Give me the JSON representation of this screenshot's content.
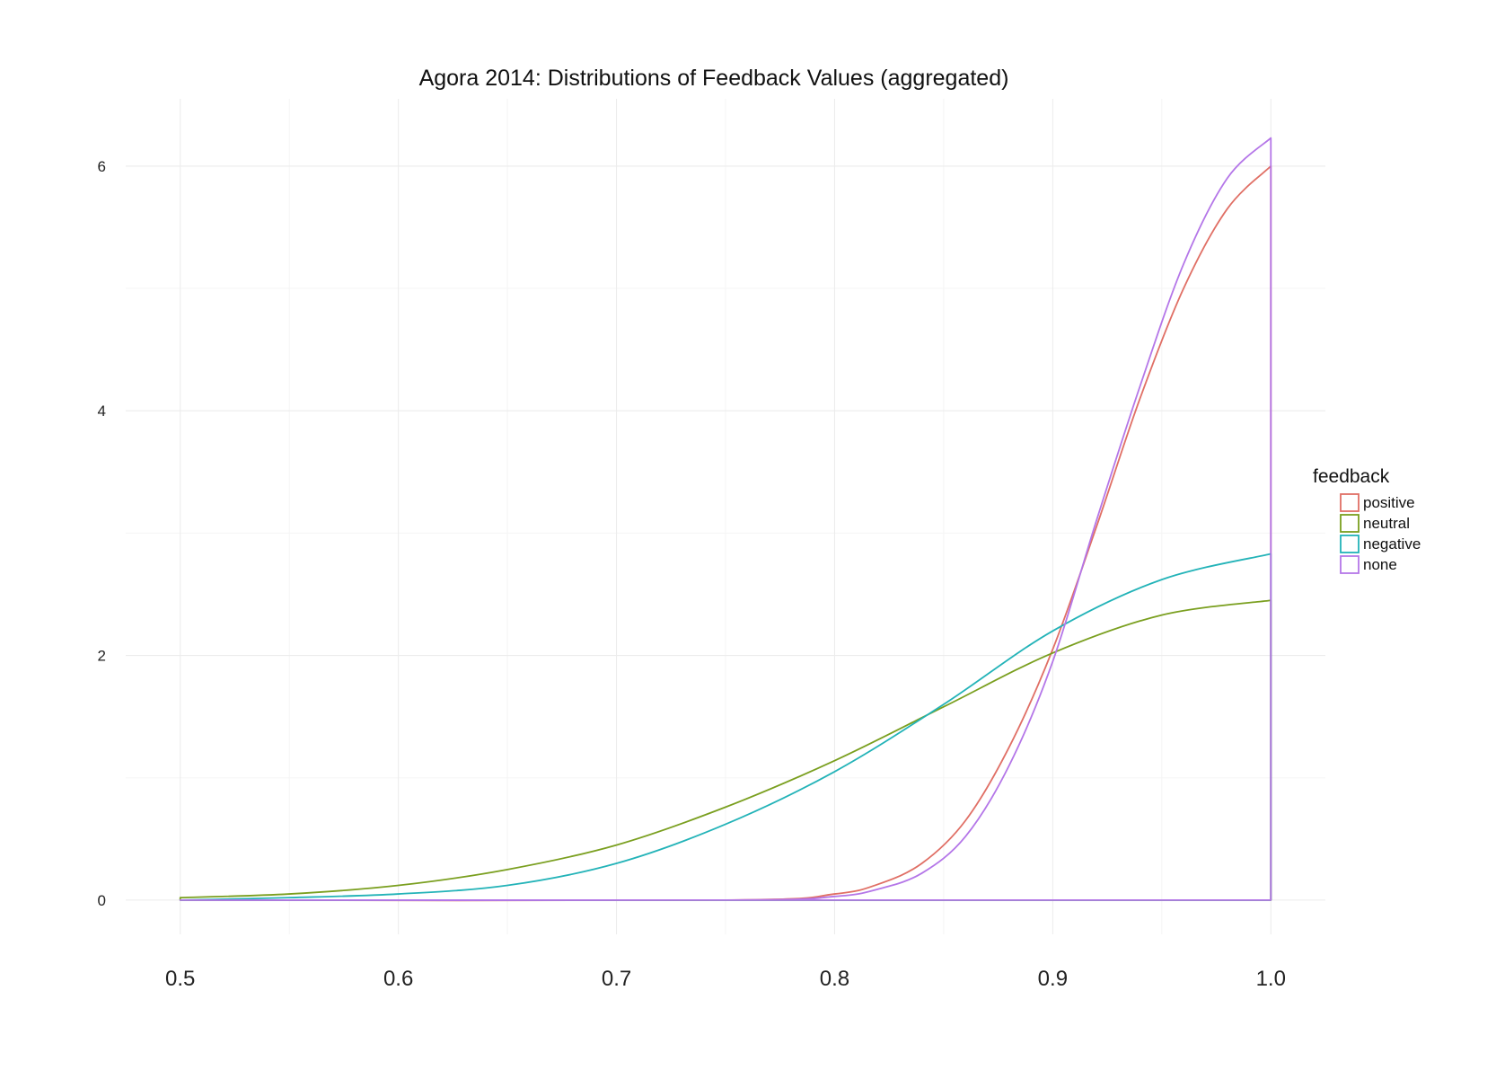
{
  "chart_data": {
    "type": "area",
    "title": "Agora 2014: Distributions of Feedback Values (aggregated)",
    "xlabel": "",
    "ylabel": "",
    "xlim": [
      0.475,
      1.025
    ],
    "ylim": [
      -0.28,
      6.55
    ],
    "x_ticks": [
      0.5,
      0.6,
      0.7,
      0.8,
      0.9,
      1.0
    ],
    "x_tick_labels": [
      "0.5",
      "0.6",
      "0.7",
      "0.8",
      "0.9",
      "1.0"
    ],
    "y_ticks": [
      0,
      2,
      4,
      6
    ],
    "y_tick_labels": [
      "0",
      "2",
      "4",
      "6"
    ],
    "grid": true,
    "legend": {
      "title": "feedback",
      "placement": "right"
    },
    "series": [
      {
        "name": "positive",
        "color": "#E06F65",
        "x": [
          0.5,
          0.75,
          0.8,
          0.82,
          0.84,
          0.86,
          0.88,
          0.9,
          0.92,
          0.94,
          0.96,
          0.98,
          1.0
        ],
        "y": [
          0.0,
          0.0,
          0.05,
          0.13,
          0.3,
          0.65,
          1.25,
          2.05,
          3.05,
          4.1,
          5.0,
          5.65,
          6.0
        ]
      },
      {
        "name": "neutral",
        "color": "#7A9F1F",
        "x": [
          0.5,
          0.55,
          0.6,
          0.65,
          0.7,
          0.75,
          0.8,
          0.85,
          0.9,
          0.95,
          1.0
        ],
        "y": [
          0.02,
          0.05,
          0.12,
          0.25,
          0.45,
          0.76,
          1.14,
          1.58,
          2.02,
          2.33,
          2.45
        ]
      },
      {
        "name": "negative",
        "color": "#23B3B8",
        "x": [
          0.5,
          0.55,
          0.6,
          0.65,
          0.7,
          0.75,
          0.8,
          0.85,
          0.9,
          0.95,
          1.0
        ],
        "y": [
          0.0,
          0.02,
          0.05,
          0.12,
          0.3,
          0.62,
          1.05,
          1.6,
          2.2,
          2.62,
          2.83
        ]
      },
      {
        "name": "none",
        "color": "#B476E8",
        "x": [
          0.5,
          0.75,
          0.8,
          0.82,
          0.84,
          0.86,
          0.88,
          0.9,
          0.92,
          0.94,
          0.96,
          0.98,
          1.0
        ],
        "y": [
          0.0,
          0.0,
          0.03,
          0.09,
          0.22,
          0.52,
          1.1,
          1.95,
          3.1,
          4.2,
          5.2,
          5.9,
          6.23
        ]
      }
    ]
  }
}
